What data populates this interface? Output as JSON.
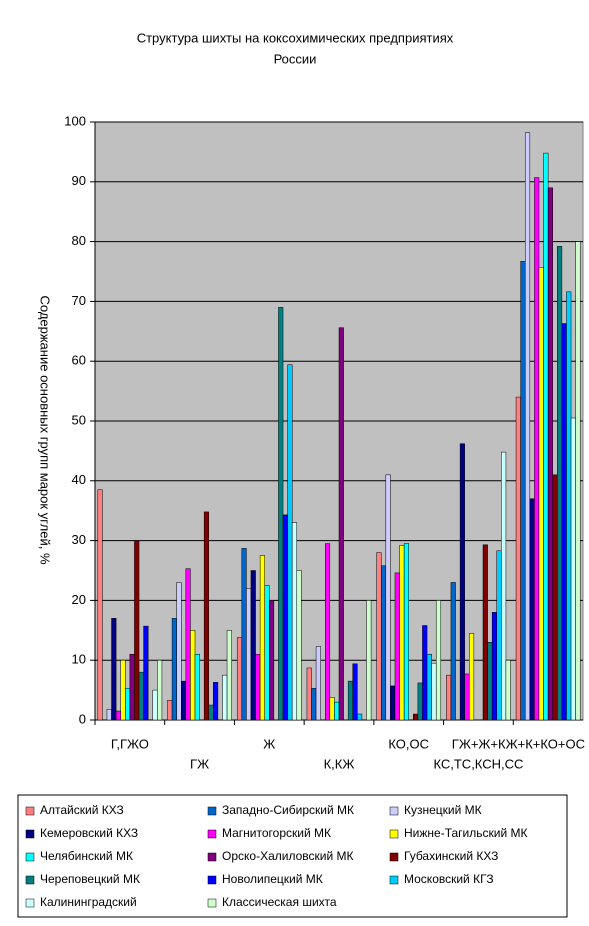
{
  "chart_data": {
    "type": "bar",
    "title": "Структура шихты на коксохимических предприятиях России",
    "y_label": "Содержание основных групп марок углей, %",
    "categories": [
      "Г,ГЖО",
      "ГЖ",
      "Ж",
      "К,КЖ",
      "КО,ОС",
      "КС,ТС,КСН,СС",
      "ГЖ+Ж+КЖ+К+КО+ОС"
    ],
    "ylim": [
      0,
      100
    ],
    "yticks": [
      0,
      10,
      20,
      30,
      40,
      50,
      60,
      70,
      80,
      90,
      100
    ],
    "grid": true,
    "series": [
      {
        "name": "Алтайский КХЗ",
        "color": "#ff8080",
        "values": [
          38.5,
          3.3,
          13.8,
          8.7,
          28,
          7.5,
          54
        ]
      },
      {
        "name": "Западно-Сибирский МК",
        "color": "#0066cc",
        "values": [
          0,
          17,
          28.7,
          5.3,
          25.8,
          23,
          76.7
        ]
      },
      {
        "name": "Кузнецкий МК",
        "color": "#ccccff",
        "values": [
          1.8,
          23,
          22,
          12.3,
          41,
          0,
          98.2
        ]
      },
      {
        "name": "Кемеровский КХЗ",
        "color": "#000080",
        "values": [
          17,
          6.5,
          25,
          0,
          5.7,
          46.2,
          37
        ]
      },
      {
        "name": "Магнитогорский МК",
        "color": "#ff00ff",
        "values": [
          1.5,
          25.3,
          11,
          29.5,
          24.6,
          7.7,
          90.7
        ]
      },
      {
        "name": "Нижне-Тагильский МК",
        "color": "#ffff00",
        "values": [
          10,
          15,
          27.5,
          3.8,
          29.2,
          14.5,
          75.7
        ]
      },
      {
        "name": "Челябинский МК",
        "color": "#00ffff",
        "values": [
          5.3,
          11,
          22.5,
          3,
          29.5,
          0,
          94.8
        ]
      },
      {
        "name": "Орско-Халиловский МК",
        "color": "#800080",
        "values": [
          11,
          0,
          20,
          65.6,
          0,
          0,
          89
        ]
      },
      {
        "name": "Губахинский КХЗ",
        "color": "#800000",
        "values": [
          30,
          34.8,
          0,
          0,
          1,
          29.3,
          41
        ]
      },
      {
        "name": "Череповецкий МК",
        "color": "#008080",
        "values": [
          8,
          2.5,
          69,
          6.5,
          6.2,
          13,
          79.2
        ]
      },
      {
        "name": "Новолипецкий МК",
        "color": "#0000ff",
        "values": [
          15.7,
          6.3,
          34.3,
          9.4,
          15.8,
          18,
          66.3
        ]
      },
      {
        "name": "Московский КГЗ",
        "color": "#00ccff",
        "values": [
          0,
          0,
          59.4,
          1,
          11,
          28.3,
          71.6
        ]
      },
      {
        "name": "Калининградский",
        "color": "#ccffff",
        "values": [
          5,
          7.5,
          33,
          0,
          9.5,
          44.8,
          50.5
        ]
      },
      {
        "name": "Классическая шихта",
        "color": "#ccffcc",
        "values": [
          10,
          15,
          25,
          20,
          20,
          10,
          80
        ]
      }
    ]
  }
}
